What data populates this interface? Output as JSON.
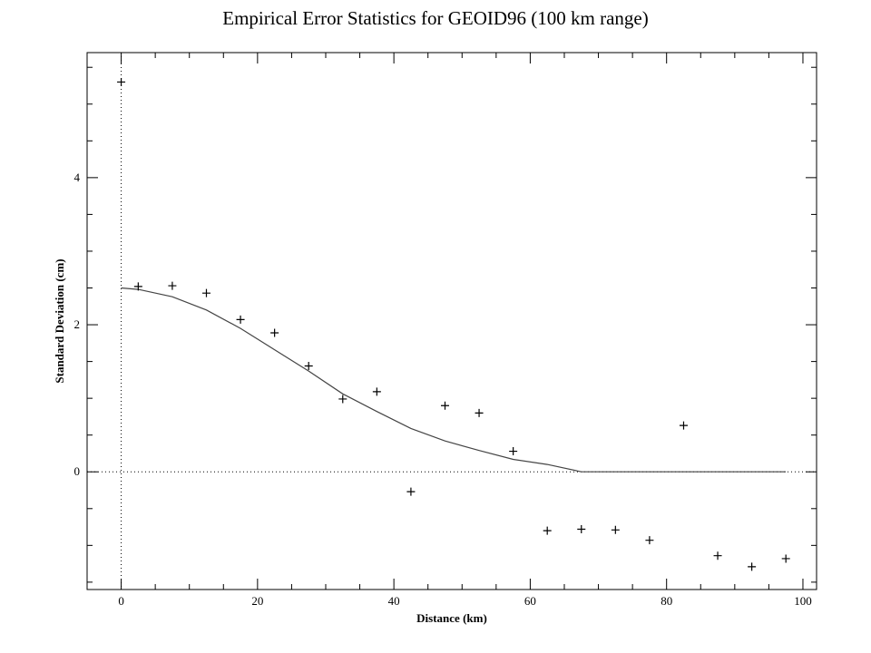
{
  "chart_data": {
    "type": "scatter",
    "title": "Empirical Error Statistics for GEOID96 (100 km range)",
    "xlabel": "Distance (km)",
    "ylabel": "Standard Deviation (cm)",
    "xlim": [
      -5,
      102
    ],
    "ylim": [
      -1.6,
      5.7
    ],
    "xticks": [
      0,
      20,
      40,
      60,
      80,
      100
    ],
    "yticks": [
      0,
      2,
      4
    ],
    "x_minor_step": 5,
    "y_minor_step": 0.5,
    "grid": false,
    "reference_lines": {
      "x": 0,
      "y": 0,
      "style": "dotted"
    },
    "series": [
      {
        "kind": "points",
        "marker": "plus",
        "points": [
          [
            0,
            5.3
          ],
          [
            2.5,
            2.52
          ],
          [
            7.5,
            2.53
          ],
          [
            12.5,
            2.43
          ],
          [
            17.5,
            2.07
          ],
          [
            22.5,
            1.89
          ],
          [
            27.5,
            1.44
          ],
          [
            32.5,
            0.99
          ],
          [
            37.5,
            1.09
          ],
          [
            42.5,
            -0.27
          ],
          [
            47.5,
            0.9
          ],
          [
            52.5,
            0.8
          ],
          [
            57.5,
            0.28
          ],
          [
            62.5,
            -0.8
          ],
          [
            67.5,
            -0.78
          ],
          [
            72.5,
            -0.79
          ],
          [
            77.5,
            -0.93
          ],
          [
            82.5,
            0.63
          ],
          [
            87.5,
            -1.14
          ],
          [
            92.5,
            -1.29
          ],
          [
            97.5,
            -1.18
          ]
        ]
      },
      {
        "kind": "line",
        "points": [
          [
            0,
            2.5
          ],
          [
            2.5,
            2.48
          ],
          [
            7.5,
            2.38
          ],
          [
            12.5,
            2.2
          ],
          [
            17.5,
            1.95
          ],
          [
            22.5,
            1.66
          ],
          [
            27.5,
            1.37
          ],
          [
            32.5,
            1.06
          ],
          [
            37.5,
            0.82
          ],
          [
            42.5,
            0.59
          ],
          [
            47.5,
            0.42
          ],
          [
            52.5,
            0.29
          ],
          [
            57.5,
            0.17
          ],
          [
            62.5,
            0.1
          ],
          [
            67.5,
            0.0
          ],
          [
            97.5,
            0.0
          ]
        ]
      }
    ]
  }
}
